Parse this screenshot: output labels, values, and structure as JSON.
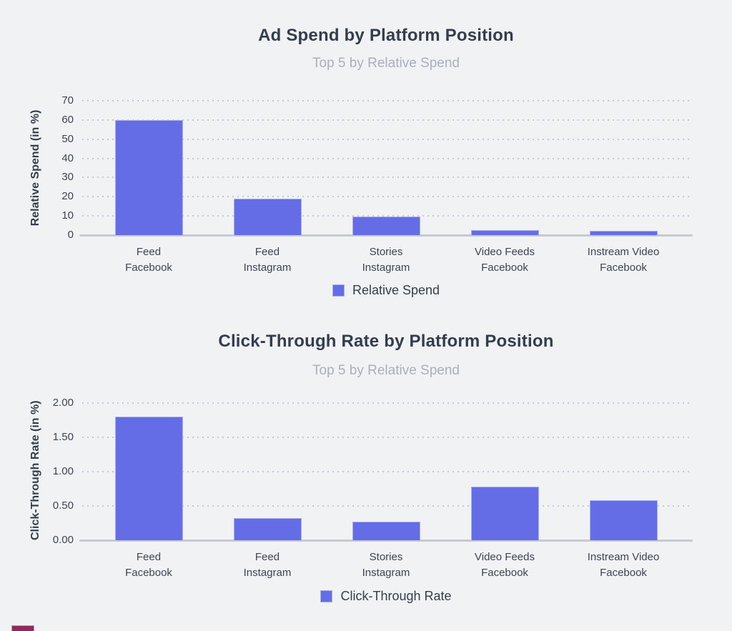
{
  "style": {
    "background": "#f1f2f4",
    "bar_color": "#656de6",
    "bar_border": "#a9aef0",
    "title_color": "#333d4e",
    "subtitle_color": "#a9b0bc",
    "tick_color": "#3c4554",
    "grid_color": "#c7cad1",
    "baseline_color": "#c6c9d0",
    "partial_shape_color": "#97275f"
  },
  "chart_data": [
    {
      "type": "bar",
      "title": "Ad Spend by Platform Position",
      "subtitle": "Top 5 by Relative Spend",
      "ylabel": "Relative Spend (in %)",
      "xlabel": "",
      "legend": "Relative Spend",
      "legend_position": "bottom",
      "grid": "dotted horizontal",
      "categories": [
        "Feed\nFacebook",
        "Feed\nInstagram",
        "Stories\nInstagram",
        "Video Feeds\nFacebook",
        "Instream Video\nFacebook"
      ],
      "values": [
        60,
        19,
        9.8,
        2.6,
        2.2
      ],
      "ylim": [
        0,
        70
      ],
      "tick_values": [
        0,
        10,
        20,
        30,
        40,
        50,
        60,
        70
      ],
      "tick_labels": [
        "0",
        "10",
        "20",
        "30",
        "40",
        "50",
        "60",
        "70"
      ]
    },
    {
      "type": "bar",
      "title": "Click-Through Rate by Platform Position",
      "subtitle": "Top 5 by Relative Spend",
      "ylabel": "Click-Through Rate (in %)",
      "xlabel": "",
      "legend": "Click-Through Rate",
      "legend_position": "bottom",
      "grid": "dotted horizontal",
      "categories": [
        "Feed\nFacebook",
        "Feed\nInstagram",
        "Stories\nInstagram",
        "Video Feeds\nFacebook",
        "Instream Video\nFacebook"
      ],
      "values": [
        1.8,
        0.32,
        0.27,
        0.78,
        0.58
      ],
      "ylim": [
        0,
        2
      ],
      "tick_values": [
        0,
        0.5,
        1,
        1.5,
        2
      ],
      "tick_labels": [
        "0.00",
        "0.50",
        "1.00",
        "1.50",
        "2.00"
      ]
    }
  ]
}
